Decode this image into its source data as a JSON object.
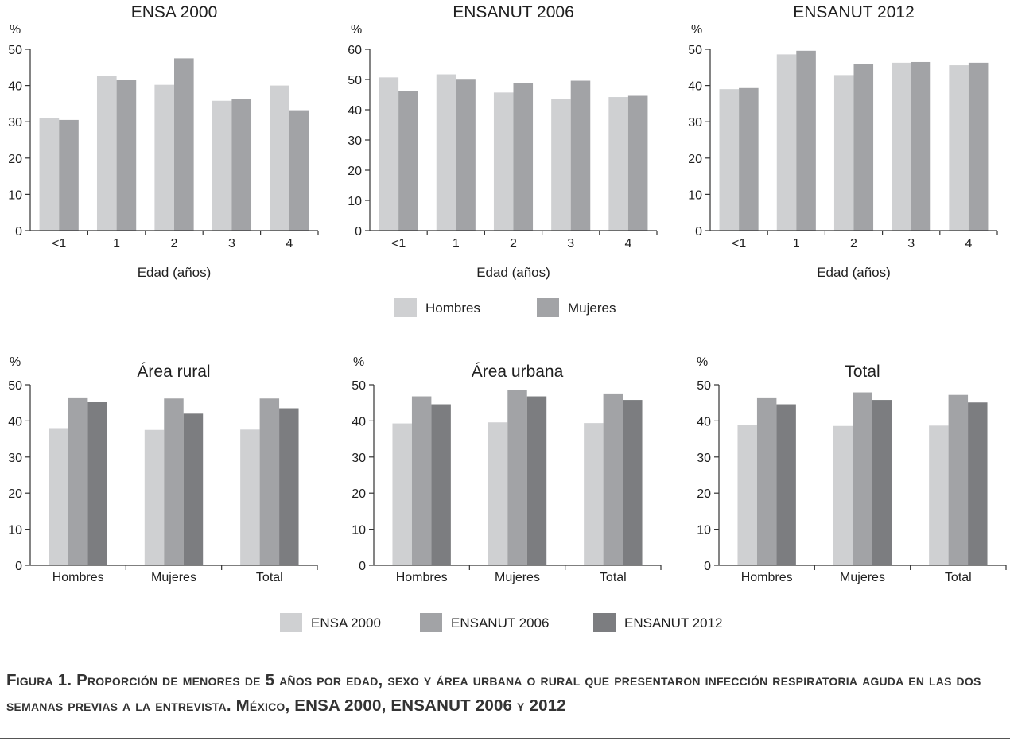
{
  "chart_data": [
    {
      "type": "bar",
      "title": "ENSA 2000",
      "ylabel": "%",
      "xlabel": "Edad (años)",
      "ylim": [
        0,
        50
      ],
      "yticks": [
        "0",
        "10",
        "20",
        "30",
        "40",
        "50"
      ],
      "categories": [
        "<1",
        "1",
        "2",
        "3",
        "4"
      ],
      "series": [
        {
          "name": "Hombres",
          "values": [
            31.0,
            42.7,
            40.2,
            35.8,
            40.0
          ]
        },
        {
          "name": "Mujeres",
          "values": [
            30.5,
            41.5,
            47.5,
            36.2,
            33.2
          ]
        }
      ]
    },
    {
      "type": "bar",
      "title": "ENSANUT 2006",
      "ylabel": "%",
      "xlabel": "Edad (años)",
      "ylim": [
        0,
        60
      ],
      "yticks": [
        "0",
        "10",
        "20",
        "30",
        "40",
        "50",
        "60"
      ],
      "categories": [
        "<1",
        "1",
        "2",
        "3",
        "4"
      ],
      "series": [
        {
          "name": "Hombres",
          "values": [
            50.7,
            51.7,
            45.7,
            43.5,
            44.2
          ]
        },
        {
          "name": "Mujeres",
          "values": [
            46.2,
            50.2,
            48.8,
            49.6,
            44.6
          ]
        }
      ]
    },
    {
      "type": "bar",
      "title": "ENSANUT 2012",
      "ylabel": "%",
      "xlabel": "Edad (años)",
      "ylim": [
        0,
        50
      ],
      "yticks": [
        "0",
        "10",
        "20",
        "30",
        "40",
        "50"
      ],
      "categories": [
        "<1",
        "1",
        "2",
        "3",
        "4"
      ],
      "series": [
        {
          "name": "Hombres",
          "values": [
            39.0,
            48.6,
            42.9,
            46.3,
            45.6
          ]
        },
        {
          "name": "Mujeres",
          "values": [
            39.3,
            49.6,
            45.9,
            46.5,
            46.3
          ]
        }
      ]
    },
    {
      "type": "bar",
      "title": "Área rural",
      "ylabel": "%",
      "xlabel": "",
      "ylim": [
        0,
        50
      ],
      "yticks": [
        "0",
        "10",
        "20",
        "30",
        "40",
        "50"
      ],
      "categories": [
        "Hombres",
        "Mujeres",
        "Total"
      ],
      "series": [
        {
          "name": "ENSA 2000",
          "values": [
            38.0,
            37.5,
            37.6
          ]
        },
        {
          "name": "ENSANUT 2006",
          "values": [
            46.5,
            46.2,
            46.2
          ]
        },
        {
          "name": "ENSANUT 2012",
          "values": [
            45.2,
            42.0,
            43.5
          ]
        }
      ]
    },
    {
      "type": "bar",
      "title": "Área urbana",
      "ylabel": "%",
      "xlabel": "",
      "ylim": [
        0,
        50
      ],
      "yticks": [
        "0",
        "10",
        "20",
        "30",
        "40",
        "50"
      ],
      "categories": [
        "Hombres",
        "Mujeres",
        "Total"
      ],
      "series": [
        {
          "name": "ENSA 2000",
          "values": [
            39.3,
            39.6,
            39.4
          ]
        },
        {
          "name": "ENSANUT 2006",
          "values": [
            46.8,
            48.5,
            47.6
          ]
        },
        {
          "name": "ENSANUT 2012",
          "values": [
            44.6,
            46.8,
            45.8
          ]
        }
      ]
    },
    {
      "type": "bar",
      "title": "Total",
      "ylabel": "%",
      "xlabel": "",
      "ylim": [
        0,
        50
      ],
      "yticks": [
        "0",
        "10",
        "20",
        "30",
        "40",
        "50"
      ],
      "categories": [
        "Hombres",
        "Mujeres",
        "Total"
      ],
      "series": [
        {
          "name": "ENSA 2000",
          "values": [
            38.8,
            38.6,
            38.7
          ]
        },
        {
          "name": "ENSANUT 2006",
          "values": [
            46.5,
            47.9,
            47.2
          ]
        },
        {
          "name": "ENSANUT 2012",
          "values": [
            44.6,
            45.8,
            45.1
          ]
        }
      ]
    }
  ],
  "legends": {
    "sexo": [
      {
        "label": "Hombres",
        "color": "#cfd0d2"
      },
      {
        "label": "Mujeres",
        "color": "#a2a3a6"
      }
    ],
    "encuesta": [
      {
        "label": "ENSA 2000",
        "color": "#cfd0d2"
      },
      {
        "label": "ENSANUT 2006",
        "color": "#a2a3a6"
      },
      {
        "label": "ENSANUT 2012",
        "color": "#7c7d80"
      }
    ]
  },
  "caption": "Figura 1. Proporción de menores de 5 años por edad, sexo y área urbana o rural que presentaron infección respiratoria aguda en las dos semanas previas a la entrevista. México, ENSA 2000, ENSANUT 2006 y 2012"
}
